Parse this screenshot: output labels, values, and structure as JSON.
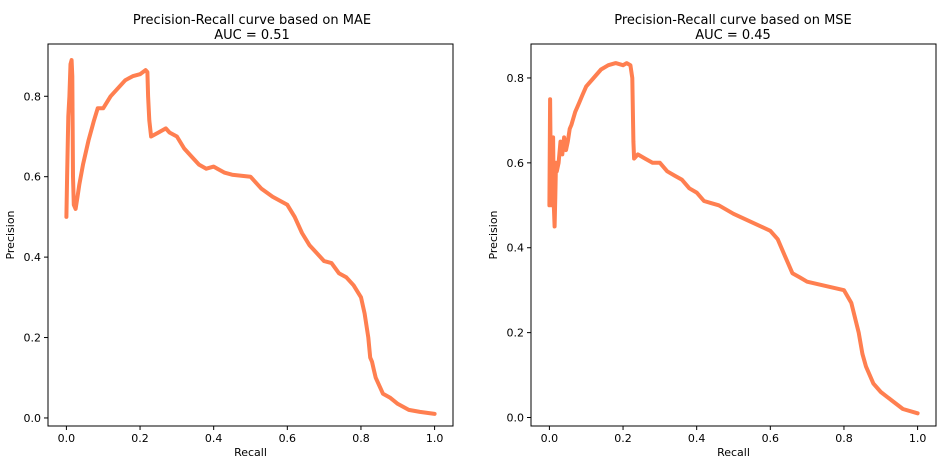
{
  "chart_data": [
    {
      "type": "line",
      "title": "Precision-Recall curve based on MAE",
      "subtitle": "AUC = 0.51",
      "xlabel": "Recall",
      "ylabel": "Precision",
      "xlim": [
        -0.05,
        1.05
      ],
      "ylim": [
        -0.02,
        0.93
      ],
      "xticks": [
        0.0,
        0.2,
        0.4,
        0.6,
        0.8,
        1.0
      ],
      "xtick_labels": [
        "0.0",
        "0.2",
        "0.4",
        "0.6",
        "0.8",
        "1.0"
      ],
      "yticks": [
        0.0,
        0.2,
        0.4,
        0.6,
        0.8
      ],
      "ytick_labels": [
        "0.0",
        "0.2",
        "0.4",
        "0.6",
        "0.8"
      ],
      "grid": false,
      "color": "#FF7F50",
      "series": [
        {
          "x": [
            0.0,
            0.002,
            0.005,
            0.008,
            0.011,
            0.014,
            0.016,
            0.018,
            0.02,
            0.025,
            0.03,
            0.035,
            0.045,
            0.06,
            0.075,
            0.085,
            0.1,
            0.12,
            0.14,
            0.16,
            0.18,
            0.2,
            0.215,
            0.22,
            0.222,
            0.225,
            0.23,
            0.25,
            0.27,
            0.28,
            0.3,
            0.32,
            0.34,
            0.36,
            0.38,
            0.4,
            0.41,
            0.43,
            0.45,
            0.5,
            0.53,
            0.56,
            0.6,
            0.62,
            0.64,
            0.66,
            0.68,
            0.7,
            0.72,
            0.74,
            0.76,
            0.78,
            0.8,
            0.81,
            0.82,
            0.825,
            0.83,
            0.835,
            0.84,
            0.86,
            0.88,
            0.9,
            0.93,
            0.96,
            1.0
          ],
          "y": [
            0.5,
            0.6,
            0.75,
            0.8,
            0.88,
            0.89,
            0.85,
            0.6,
            0.53,
            0.52,
            0.55,
            0.58,
            0.63,
            0.69,
            0.74,
            0.77,
            0.77,
            0.8,
            0.82,
            0.84,
            0.85,
            0.855,
            0.865,
            0.86,
            0.8,
            0.74,
            0.7,
            0.71,
            0.72,
            0.71,
            0.7,
            0.67,
            0.65,
            0.63,
            0.62,
            0.625,
            0.62,
            0.61,
            0.605,
            0.6,
            0.57,
            0.55,
            0.53,
            0.5,
            0.46,
            0.43,
            0.41,
            0.39,
            0.385,
            0.36,
            0.35,
            0.33,
            0.3,
            0.26,
            0.2,
            0.15,
            0.14,
            0.12,
            0.1,
            0.06,
            0.05,
            0.035,
            0.02,
            0.015,
            0.01
          ]
        }
      ]
    },
    {
      "type": "line",
      "title": "Precision-Recall curve based on MSE",
      "subtitle": "AUC = 0.45",
      "xlabel": "Recall",
      "ylabel": "Precision",
      "xlim": [
        -0.05,
        1.05
      ],
      "ylim": [
        -0.02,
        0.88
      ],
      "xticks": [
        0.0,
        0.2,
        0.4,
        0.6,
        0.8,
        1.0
      ],
      "xtick_labels": [
        "0.0",
        "0.2",
        "0.4",
        "0.6",
        "0.8",
        "1.0"
      ],
      "yticks": [
        0.0,
        0.2,
        0.4,
        0.6,
        0.8
      ],
      "ytick_labels": [
        "0.0",
        "0.2",
        "0.4",
        "0.6",
        "0.8"
      ],
      "grid": false,
      "color": "#FF7F50",
      "series": [
        {
          "x": [
            0.0,
            0.002,
            0.004,
            0.006,
            0.008,
            0.01,
            0.012,
            0.014,
            0.016,
            0.018,
            0.02,
            0.025,
            0.03,
            0.035,
            0.04,
            0.045,
            0.05,
            0.055,
            0.06,
            0.07,
            0.08,
            0.09,
            0.1,
            0.12,
            0.14,
            0.16,
            0.18,
            0.2,
            0.21,
            0.22,
            0.225,
            0.228,
            0.23,
            0.24,
            0.26,
            0.28,
            0.3,
            0.32,
            0.34,
            0.36,
            0.38,
            0.4,
            0.42,
            0.44,
            0.46,
            0.5,
            0.55,
            0.6,
            0.62,
            0.64,
            0.66,
            0.68,
            0.7,
            0.75,
            0.8,
            0.82,
            0.84,
            0.85,
            0.86,
            0.87,
            0.88,
            0.9,
            0.93,
            0.96,
            1.0
          ],
          "y": [
            0.5,
            0.75,
            0.55,
            0.5,
            0.6,
            0.66,
            0.5,
            0.45,
            0.52,
            0.6,
            0.58,
            0.6,
            0.65,
            0.62,
            0.66,
            0.63,
            0.65,
            0.68,
            0.69,
            0.72,
            0.74,
            0.76,
            0.78,
            0.8,
            0.82,
            0.83,
            0.835,
            0.83,
            0.835,
            0.83,
            0.8,
            0.65,
            0.61,
            0.62,
            0.61,
            0.6,
            0.6,
            0.58,
            0.57,
            0.56,
            0.54,
            0.53,
            0.51,
            0.505,
            0.5,
            0.48,
            0.46,
            0.44,
            0.42,
            0.38,
            0.34,
            0.33,
            0.32,
            0.31,
            0.3,
            0.27,
            0.2,
            0.15,
            0.12,
            0.1,
            0.08,
            0.06,
            0.04,
            0.02,
            0.01
          ]
        }
      ]
    }
  ]
}
